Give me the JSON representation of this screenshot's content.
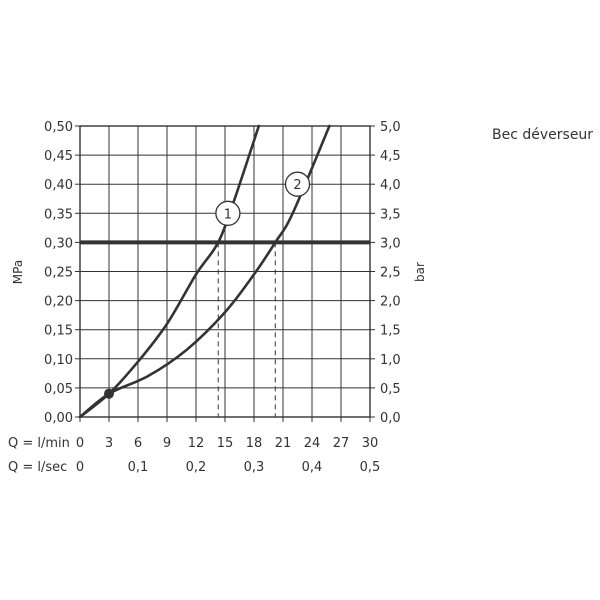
{
  "title": "Bec déverseur",
  "chart_data": {
    "type": "line",
    "title": "Bec déverseur",
    "x_primary": {
      "label": "Q = l/min",
      "ticks": [
        "0",
        "3",
        "6",
        "9",
        "12",
        "15",
        "18",
        "21",
        "24",
        "27",
        "30"
      ],
      "range": [
        0,
        30
      ]
    },
    "x_secondary": {
      "label": "Q = l/sec",
      "ticks": [
        {
          "value": 0,
          "label": "0"
        },
        {
          "value": 0.1,
          "label": "0,1"
        },
        {
          "value": 0.2,
          "label": "0,2"
        },
        {
          "value": 0.3,
          "label": "0,3"
        },
        {
          "value": 0.4,
          "label": "0,4"
        },
        {
          "value": 0.5,
          "label": "0,5"
        }
      ]
    },
    "y_left": {
      "label": "MPa",
      "ticks": [
        "0,00",
        "0,05",
        "0,10",
        "0,15",
        "0,20",
        "0,25",
        "0,30",
        "0,35",
        "0,40",
        "0,45",
        "0,50"
      ],
      "range": [
        0,
        0.5
      ]
    },
    "y_right": {
      "label": "bar",
      "ticks": [
        "0,0",
        "0,5",
        "1,0",
        "1,5",
        "2,0",
        "2,5",
        "3,0",
        "3,5",
        "4,0",
        "4,5",
        "5,0"
      ],
      "range": [
        0,
        5
      ]
    },
    "grid": true,
    "reference_line": {
      "y": 0.3
    },
    "series": [
      {
        "label": "1",
        "x": [
          0,
          3,
          6,
          9,
          12,
          14.3,
          16,
          18.5
        ],
        "y": [
          0,
          0.04,
          0.095,
          0.16,
          0.245,
          0.3,
          0.375,
          0.5
        ]
      },
      {
        "label": "2",
        "x": [
          0,
          3,
          7,
          11,
          15,
          18,
          20.2,
          22,
          25.8
        ],
        "y": [
          0,
          0.04,
          0.07,
          0.115,
          0.18,
          0.245,
          0.3,
          0.35,
          0.5
        ]
      }
    ],
    "series_labels": [
      {
        "text": "1",
        "x": 15.3,
        "y": 0.35
      },
      {
        "text": "2",
        "x": 22.5,
        "y": 0.4
      }
    ],
    "marker": {
      "x": 3,
      "y": 0.04
    },
    "dashed_drops": [
      14.3,
      20.2
    ]
  }
}
